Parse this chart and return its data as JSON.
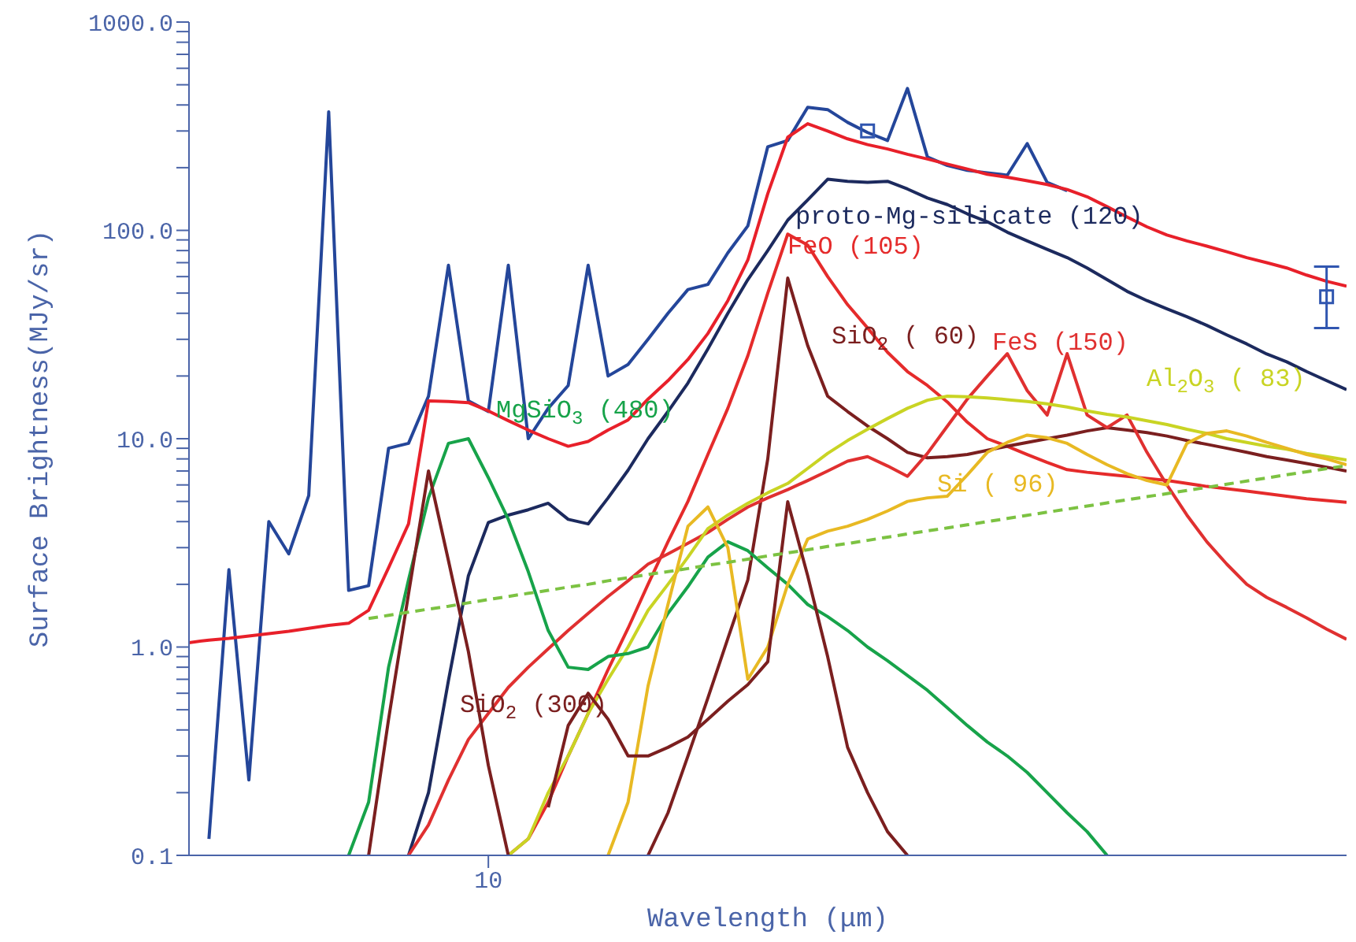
{
  "chart_data": {
    "type": "line",
    "xlabel": "Wavelength (μm)",
    "ylabel": "Surface Brightness(MJy/sr)",
    "log": "y",
    "marker": "none",
    "categories": [
      null,
      null,
      null,
      null,
      null,
      null,
      null,
      null,
      null,
      null,
      null,
      null,
      null,
      null,
      null,
      "10",
      null,
      null,
      null,
      null,
      null,
      null,
      null,
      null,
      null,
      null,
      null,
      null,
      null,
      null,
      null,
      null,
      null,
      null,
      null,
      null,
      null,
      null,
      null,
      null,
      null,
      null,
      null,
      null,
      null,
      null,
      null,
      null,
      null,
      null,
      null,
      null,
      null,
      null,
      null,
      null,
      null,
      null,
      null
    ],
    "ylim": [
      0.1,
      1000
    ],
    "yticks": [
      {
        "value": 0.1,
        "label": "0.1"
      },
      {
        "value": 0.2,
        "label": null
      },
      {
        "value": 0.3,
        "label": null
      },
      {
        "value": 0.4,
        "label": null
      },
      {
        "value": 0.5,
        "label": null
      },
      {
        "value": 0.6,
        "label": null
      },
      {
        "value": 0.7,
        "label": null
      },
      {
        "value": 0.8,
        "label": null
      },
      {
        "value": 0.9,
        "label": null
      },
      {
        "value": 1,
        "label": "1.0"
      },
      {
        "value": 2,
        "label": null
      },
      {
        "value": 3,
        "label": null
      },
      {
        "value": 4,
        "label": null
      },
      {
        "value": 5,
        "label": null
      },
      {
        "value": 6,
        "label": null
      },
      {
        "value": 7,
        "label": null
      },
      {
        "value": 8,
        "label": null
      },
      {
        "value": 9,
        "label": null
      },
      {
        "value": 10,
        "label": "10.0"
      },
      {
        "value": 20,
        "label": null
      },
      {
        "value": 30,
        "label": null
      },
      {
        "value": 40,
        "label": null
      },
      {
        "value": 50,
        "label": null
      },
      {
        "value": 60,
        "label": null
      },
      {
        "value": 70,
        "label": null
      },
      {
        "value": 80,
        "label": null
      },
      {
        "value": 90,
        "label": null
      },
      {
        "value": 100,
        "label": "100.0"
      },
      {
        "value": 200,
        "label": null
      },
      {
        "value": 300,
        "label": null
      },
      {
        "value": 400,
        "label": null
      },
      {
        "value": 500,
        "label": null
      },
      {
        "value": 600,
        "label": null
      },
      {
        "value": 700,
        "label": null
      },
      {
        "value": 800,
        "label": null
      },
      {
        "value": 900,
        "label": null
      },
      {
        "value": 1000,
        "label": "1000.0"
      }
    ],
    "series": [
      {
        "name": "proto-Mg-silicate (120)",
        "color": "#1c2a5e",
        "values": [
          null,
          null,
          null,
          null,
          null,
          null,
          null,
          null,
          null,
          null,
          null,
          0.1,
          0.2,
          0.69,
          2.2,
          3.96,
          4.3,
          4.56,
          4.9,
          4.1,
          3.9,
          5.2,
          7.06,
          10,
          13.5,
          18.5,
          27,
          40,
          58,
          80,
          112,
          140,
          176,
          172,
          170,
          172,
          158,
          143,
          133,
          120,
          110,
          98,
          89,
          81,
          74,
          66,
          58,
          51,
          46,
          42,
          38.5,
          35,
          31.5,
          28.5,
          25.5,
          23.4,
          21,
          19,
          17.2
        ]
      },
      {
        "name": "FeO (105)",
        "color": "#e52b2b",
        "values": [
          null,
          null,
          null,
          null,
          null,
          null,
          null,
          null,
          null,
          null,
          null,
          null,
          null,
          null,
          null,
          null,
          0.1,
          0.12,
          0.18,
          0.3,
          0.48,
          0.78,
          1.23,
          2.0,
          3.2,
          5.0,
          8.4,
          14,
          25,
          50,
          96,
          85,
          60,
          44,
          34,
          26,
          21,
          18,
          15,
          12,
          10,
          9.2,
          8.4,
          7.7,
          7.1,
          6.9,
          6.75,
          6.6,
          6.45,
          6.3,
          6.1,
          5.9,
          5.75,
          5.6,
          5.45,
          5.3,
          5.15,
          5.05,
          4.95
        ]
      },
      {
        "name": "SiO$_{2}$ ( 60)",
        "color": "#7b1f1f",
        "values": [
          null,
          null,
          null,
          null,
          null,
          null,
          null,
          null,
          null,
          null,
          null,
          null,
          null,
          null,
          null,
          null,
          null,
          null,
          null,
          null,
          null,
          null,
          null,
          0.1,
          0.16,
          0.3,
          0.57,
          1.1,
          2.1,
          8,
          59,
          28,
          16,
          13.5,
          11.5,
          10,
          8.6,
          8.1,
          8.2,
          8.4,
          8.8,
          9.2,
          9.6,
          10,
          10.4,
          10.9,
          11.3,
          11,
          10.7,
          10.3,
          9.8,
          9.4,
          9.0,
          8.6,
          8.2,
          7.9,
          7.6,
          7.3,
          7.0
        ]
      },
      {
        "name": "FeS (150)",
        "color": "#e03030",
        "values": [
          null,
          null,
          null,
          null,
          null,
          null,
          null,
          null,
          null,
          null,
          null,
          0.1,
          0.14,
          0.23,
          0.36,
          0.48,
          0.64,
          0.8,
          0.98,
          1.2,
          1.45,
          1.75,
          2.08,
          2.5,
          2.8,
          3.15,
          3.55,
          4.1,
          4.7,
          5.2,
          5.7,
          6.3,
          7.0,
          7.8,
          8.2,
          7.4,
          6.6,
          8.5,
          11.5,
          15.5,
          20,
          25.6,
          17,
          13,
          25.6,
          13,
          11.3,
          13,
          8.6,
          6,
          4.3,
          3.2,
          2.5,
          2.0,
          1.73,
          1.55,
          1.38,
          1.22,
          1.09
        ]
      },
      {
        "name": "Al$_{2}$O$_{3}$ ( 83)",
        "color": "#c9d424",
        "values": [
          null,
          null,
          null,
          null,
          null,
          null,
          null,
          null,
          null,
          null,
          null,
          null,
          null,
          null,
          null,
          null,
          0.1,
          0.12,
          0.2,
          0.3,
          0.48,
          0.7,
          1.0,
          1.5,
          2.0,
          2.7,
          3.7,
          4.3,
          4.9,
          5.5,
          6.1,
          7.2,
          8.5,
          9.8,
          11.1,
          12.5,
          14,
          15.3,
          16,
          15.9,
          15.7,
          15.4,
          15.1,
          14.7,
          14.2,
          13.6,
          13.1,
          12.7,
          12.2,
          11.7,
          11.1,
          10.6,
          10,
          9.6,
          9.2,
          8.9,
          8.5,
          8.2,
          7.9
        ]
      },
      {
        "name": "MgSiO$_{3}$ (480)",
        "color": "#17a34a",
        "values": [
          null,
          null,
          null,
          null,
          null,
          null,
          null,
          null,
          0.1,
          0.18,
          0.8,
          2.1,
          5.2,
          9.5,
          10,
          6.5,
          4.1,
          2.3,
          1.2,
          0.8,
          0.78,
          0.9,
          0.93,
          1.0,
          1.45,
          1.95,
          2.7,
          3.2,
          2.9,
          2.4,
          2.0,
          1.6,
          1.4,
          1.2,
          1.0,
          0.86,
          0.73,
          0.62,
          0.51,
          0.42,
          0.35,
          0.3,
          0.25,
          0.2,
          0.16,
          0.13,
          0.1,
          null,
          null,
          null,
          null,
          null,
          null,
          null,
          null,
          null,
          null,
          null,
          null
        ]
      },
      {
        "name": "Si ( 96)",
        "color": "#e8b923",
        "values": [
          null,
          null,
          null,
          null,
          null,
          null,
          null,
          null,
          null,
          null,
          null,
          null,
          null,
          null,
          null,
          null,
          null,
          null,
          null,
          null,
          null,
          0.1,
          0.18,
          0.65,
          1.6,
          3.8,
          4.7,
          3.0,
          0.7,
          1.0,
          2.0,
          3.3,
          3.6,
          3.8,
          4.1,
          4.5,
          5.0,
          5.2,
          5.3,
          6.7,
          8.6,
          9.6,
          10.4,
          10.1,
          9.5,
          8.4,
          7.5,
          6.8,
          6.3,
          6.0,
          9.5,
          10.6,
          10.9,
          10.3,
          9.6,
          9.0,
          8.4,
          8.0,
          7.5
        ]
      },
      {
        "name": "SiO$_{2}$ (300)",
        "color": "#7b1f1f",
        "values": [
          null,
          null,
          null,
          null,
          null,
          null,
          null,
          null,
          null,
          0.1,
          0.45,
          1.8,
          7.0,
          2.6,
          0.95,
          0.27,
          0.1,
          null,
          0.17,
          0.42,
          0.6,
          0.45,
          0.3,
          0.3,
          0.33,
          0.37,
          0.45,
          0.55,
          0.66,
          0.85,
          4.98,
          2.2,
          0.9,
          0.33,
          0.2,
          0.13,
          0.1,
          null,
          null,
          null,
          null,
          null,
          null,
          null,
          null,
          null,
          null,
          null,
          null,
          null,
          null,
          null,
          null,
          null,
          null,
          null,
          null,
          null,
          null
        ]
      },
      {
        "color": "#7cc242",
        "line_style": "dashed",
        "values": [
          null,
          null,
          null,
          null,
          null,
          null,
          null,
          null,
          null,
          1.37,
          1.42,
          1.47,
          1.52,
          1.57,
          1.63,
          1.69,
          1.75,
          1.81,
          1.87,
          1.94,
          2.0,
          2.08,
          2.15,
          2.23,
          2.3,
          2.38,
          2.47,
          2.55,
          2.64,
          2.74,
          2.83,
          2.93,
          3.04,
          3.14,
          3.25,
          3.37,
          3.49,
          3.61,
          3.73,
          3.86,
          4.0,
          4.14,
          4.29,
          4.44,
          4.59,
          4.75,
          4.92,
          5.09,
          5.27,
          5.45,
          5.64,
          5.84,
          6.05,
          6.26,
          6.48,
          6.71,
          6.94,
          7.18,
          7.43
        ]
      },
      {
        "color": "#24469a",
        "values": [
          null,
          0.12,
          2.35,
          0.23,
          4.0,
          2.8,
          5.34,
          371,
          1.87,
          1.97,
          9.0,
          9.5,
          16,
          68,
          15.2,
          13.5,
          68,
          10,
          14,
          18,
          68,
          20,
          22.7,
          30,
          40,
          52,
          55,
          78,
          105,
          252,
          270,
          390,
          380,
          330,
          295,
          270,
          480,
          225,
          205,
          194,
          189,
          184,
          261,
          170,
          155,
          null,
          null,
          null,
          null,
          null,
          null,
          null,
          null,
          null,
          null,
          null,
          null,
          null,
          null
        ]
      },
      {
        "color": "#e8202a",
        "values": [
          1.05,
          1.08,
          1.1,
          1.13,
          1.16,
          1.19,
          1.23,
          1.27,
          1.3,
          1.5,
          2.4,
          3.9,
          15.2,
          15.1,
          14.9,
          13.6,
          12.2,
          11,
          10,
          9.2,
          9.7,
          11,
          12.3,
          15.5,
          19,
          24,
          32,
          46,
          72,
          150,
          280,
          325,
          300,
          275,
          258,
          246,
          232,
          220,
          208,
          197,
          186,
          180,
          173,
          166,
          157,
          145,
          130,
          116,
          104,
          95,
          89,
          84,
          79,
          74,
          70,
          66,
          61,
          57,
          54
        ]
      },
      {
        "type": "scatter",
        "marker": "square",
        "color": "#3056b0",
        "values": [
          null,
          null,
          null,
          null,
          null,
          null,
          null,
          null,
          null,
          null,
          null,
          null,
          null,
          null,
          null,
          null,
          null,
          null,
          null,
          null,
          null,
          null,
          null,
          null,
          null,
          null,
          null,
          null,
          null,
          null,
          null,
          null,
          null,
          null,
          300,
          null,
          null,
          null,
          null,
          null,
          null,
          null,
          null,
          null,
          null,
          null,
          null,
          null,
          null,
          null,
          null,
          null,
          null,
          null,
          null,
          null,
          null,
          48,
          null
        ],
        "errors": [
          null,
          null,
          null,
          null,
          null,
          null,
          null,
          null,
          null,
          null,
          null,
          null,
          null,
          null,
          null,
          null,
          null,
          null,
          null,
          null,
          null,
          null,
          null,
          null,
          null,
          null,
          null,
          null,
          null,
          null,
          null,
          null,
          null,
          null,
          null,
          null,
          null,
          null,
          null,
          null,
          null,
          null,
          null,
          null,
          null,
          null,
          null,
          null,
          null,
          null,
          null,
          null,
          null,
          null,
          null,
          null,
          null,
          [
            34,
            67
          ],
          null
        ]
      }
    ]
  }
}
